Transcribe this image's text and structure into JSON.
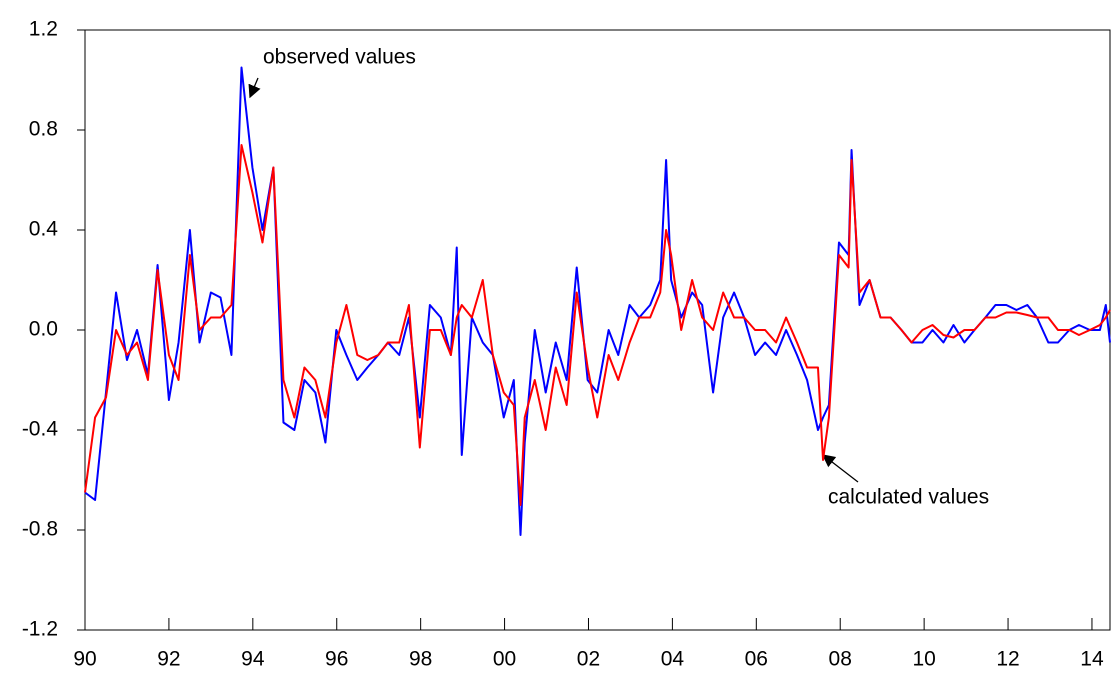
{
  "chart_data": {
    "type": "line",
    "x": [
      1990.0,
      1990.24,
      1990.5,
      1990.74,
      1991.0,
      1991.24,
      1991.5,
      1991.73,
      1992.0,
      1992.23,
      1992.5,
      1992.73,
      1993.0,
      1993.23,
      1993.49,
      1993.73,
      1993.99,
      1994.23,
      1994.49,
      1994.73,
      1994.99,
      1995.23,
      1995.49,
      1995.73,
      1995.99,
      1996.23,
      1996.49,
      1996.73,
      1996.99,
      1997.22,
      1997.49,
      1997.72,
      1997.98,
      1998.22,
      1998.48,
      1998.72,
      1998.86,
      1998.98,
      1999.22,
      1999.48,
      1999.72,
      1999.98,
      2000.22,
      2000.38,
      2000.48,
      2000.72,
      2000.98,
      2001.22,
      2001.48,
      2001.72,
      2001.98,
      2002.21,
      2002.48,
      2002.71,
      2002.98,
      2003.21,
      2003.47,
      2003.71,
      2003.85,
      2003.97,
      2004.21,
      2004.47,
      2004.71,
      2004.97,
      2005.21,
      2005.47,
      2005.71,
      2005.97,
      2006.21,
      2006.47,
      2006.71,
      2006.97,
      2007.21,
      2007.47,
      2007.59,
      2007.73,
      2007.97,
      2008.2,
      2008.27,
      2008.46,
      2008.7,
      2008.96,
      2009.2,
      2009.46,
      2009.7,
      2009.96,
      2010.2,
      2010.46,
      2010.7,
      2010.96,
      2011.2,
      2011.46,
      2011.7,
      2011.96,
      2012.2,
      2012.46,
      2012.69,
      2012.96,
      2013.19,
      2013.46,
      2013.69,
      2013.95,
      2014.19,
      2014.33,
      2014.43
    ],
    "series": [
      {
        "color": "#0000ff",
        "values": [
          -0.65,
          -0.68,
          -0.25,
          0.15,
          -0.12,
          0.0,
          -0.18,
          0.26,
          -0.28,
          -0.05,
          0.4,
          -0.05,
          0.15,
          0.13,
          -0.1,
          1.05,
          0.65,
          0.4,
          0.65,
          -0.37,
          -0.4,
          -0.2,
          -0.25,
          -0.45,
          0.0,
          -0.1,
          -0.2,
          -0.15,
          -0.1,
          -0.05,
          -0.1,
          0.05,
          -0.35,
          0.1,
          0.05,
          -0.1,
          0.33,
          -0.5,
          0.05,
          -0.05,
          -0.1,
          -0.35,
          -0.2,
          -0.82,
          -0.45,
          0.0,
          -0.25,
          -0.05,
          -0.2,
          0.25,
          -0.2,
          -0.25,
          0.0,
          -0.1,
          0.1,
          0.05,
          0.1,
          0.2,
          0.68,
          0.2,
          0.05,
          0.15,
          0.1,
          -0.25,
          0.05,
          0.15,
          0.05,
          -0.1,
          -0.05,
          -0.1,
          0.0,
          -0.1,
          -0.2,
          -0.4,
          -0.35,
          -0.3,
          0.35,
          0.3,
          0.72,
          0.1,
          0.2,
          0.05,
          0.05,
          0.0,
          -0.05,
          -0.05,
          0.0,
          -0.05,
          0.02,
          -0.05,
          0.0,
          0.05,
          0.1,
          0.1,
          0.08,
          0.1,
          0.05,
          -0.05,
          -0.05,
          0.0,
          0.02,
          0.0,
          0.0,
          0.1,
          -0.05
        ]
      },
      {
        "color": "#ff0000",
        "values": [
          -0.65,
          -0.35,
          -0.27,
          0.0,
          -0.1,
          -0.05,
          -0.2,
          0.24,
          -0.1,
          -0.2,
          0.3,
          0.0,
          0.05,
          0.05,
          0.1,
          0.74,
          0.55,
          0.35,
          0.65,
          -0.2,
          -0.35,
          -0.15,
          -0.2,
          -0.35,
          -0.05,
          0.1,
          -0.1,
          -0.12,
          -0.1,
          -0.05,
          -0.05,
          0.1,
          -0.47,
          0.0,
          0.0,
          -0.1,
          0.05,
          0.1,
          0.05,
          0.2,
          -0.1,
          -0.25,
          -0.3,
          -0.7,
          -0.35,
          -0.2,
          -0.4,
          -0.15,
          -0.3,
          0.15,
          -0.15,
          -0.35,
          -0.1,
          -0.2,
          -0.05,
          0.05,
          0.05,
          0.15,
          0.4,
          0.3,
          0.0,
          0.2,
          0.05,
          0.0,
          0.15,
          0.05,
          0.05,
          0.0,
          0.0,
          -0.05,
          0.05,
          -0.05,
          -0.15,
          -0.15,
          -0.52,
          -0.35,
          0.3,
          0.25,
          0.68,
          0.15,
          0.2,
          0.05,
          0.05,
          0.0,
          -0.05,
          0.0,
          0.02,
          -0.02,
          -0.03,
          0.0,
          0.0,
          0.05,
          0.05,
          0.07,
          0.07,
          0.06,
          0.05,
          0.05,
          0.0,
          0.0,
          -0.02,
          0.0,
          0.02,
          0.05,
          0.08
        ]
      }
    ],
    "ylim": [
      -1.2,
      1.2
    ],
    "yticks": [
      -1.2,
      -0.8,
      -0.4,
      {
        "value": 0,
        "label": "0.0"
      },
      0.4,
      0.8,
      1.2
    ],
    "xlim": [
      1990,
      2014.43
    ],
    "xticks": [
      {
        "value": 1990,
        "label": "90"
      },
      {
        "value": 1992,
        "label": "92"
      },
      {
        "value": 1994,
        "label": "94"
      },
      {
        "value": 1996,
        "label": "96"
      },
      {
        "value": 1998,
        "label": "98"
      },
      {
        "value": 2000,
        "label": "00"
      },
      {
        "value": 2002,
        "label": "02"
      },
      {
        "value": 2004,
        "label": "04"
      },
      {
        "value": 2006,
        "label": "06"
      },
      {
        "value": 2008,
        "label": "08"
      },
      {
        "value": 2010,
        "label": "10"
      },
      {
        "value": 2012,
        "label": "12"
      },
      {
        "value": 2014,
        "label": "14"
      }
    ],
    "annotations": [
      "observed values",
      "calculated values"
    ]
  }
}
